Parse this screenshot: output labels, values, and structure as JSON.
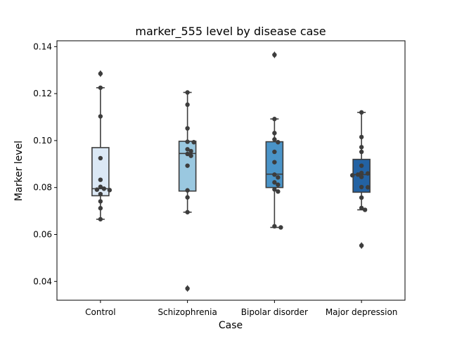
{
  "chart_data": {
    "type": "box",
    "title": "marker_555 level by disease case",
    "xlabel": "Case",
    "ylabel": "Marker level",
    "ylim": [
      0.032,
      0.1425
    ],
    "yticks": [
      0.04,
      0.06,
      0.08,
      0.1,
      0.12,
      0.14
    ],
    "ytick_labels": [
      "0.04",
      "0.06",
      "0.08",
      "0.10",
      "0.12",
      "0.14"
    ],
    "grid": false,
    "categories": [
      "Control",
      "Schizophrenia",
      "Bipolar disorder",
      "Major depression"
    ],
    "colors": [
      "#dbe8f5",
      "#9ac8e0",
      "#4a94c8",
      "#2362a3"
    ],
    "boxes": [
      {
        "q1": 0.0765,
        "median": 0.0795,
        "q3": 0.097,
        "whisker_low": 0.0665,
        "whisker_high": 0.1225,
        "outliers": [
          0.1285
        ]
      },
      {
        "q1": 0.0785,
        "median": 0.0945,
        "q3": 0.0997,
        "whisker_low": 0.0695,
        "whisker_high": 0.1205,
        "outliers": [
          0.037
        ]
      },
      {
        "q1": 0.08,
        "median": 0.0857,
        "q3": 0.0995,
        "whisker_low": 0.063,
        "whisker_high": 0.1092,
        "outliers": [
          0.1365
        ]
      },
      {
        "q1": 0.078,
        "median": 0.0855,
        "q3": 0.092,
        "whisker_low": 0.0705,
        "whisker_high": 0.112,
        "outliers": [
          0.0553
        ]
      }
    ],
    "points": [
      [
        0.1285,
        0.1225,
        0.1103,
        0.0925,
        0.0833,
        0.0803,
        0.0795,
        0.0791,
        0.0789,
        0.0772,
        0.0741,
        0.0712,
        0.0665
      ],
      [
        0.1205,
        0.1153,
        0.1052,
        0.0995,
        0.0993,
        0.0963,
        0.0955,
        0.0943,
        0.0935,
        0.0893,
        0.0788,
        0.0758,
        0.0695,
        0.037
      ],
      [
        0.1365,
        0.1092,
        0.1032,
        0.1005,
        0.0993,
        0.0952,
        0.0908,
        0.0855,
        0.0843,
        0.0822,
        0.0812,
        0.0792,
        0.0783,
        0.0635,
        0.063
      ],
      [
        0.112,
        0.1015,
        0.0972,
        0.0952,
        0.0893,
        0.0862,
        0.086,
        0.0855,
        0.0852,
        0.0845,
        0.0802,
        0.0801,
        0.0757,
        0.0713,
        0.0705,
        0.0553
      ]
    ]
  }
}
